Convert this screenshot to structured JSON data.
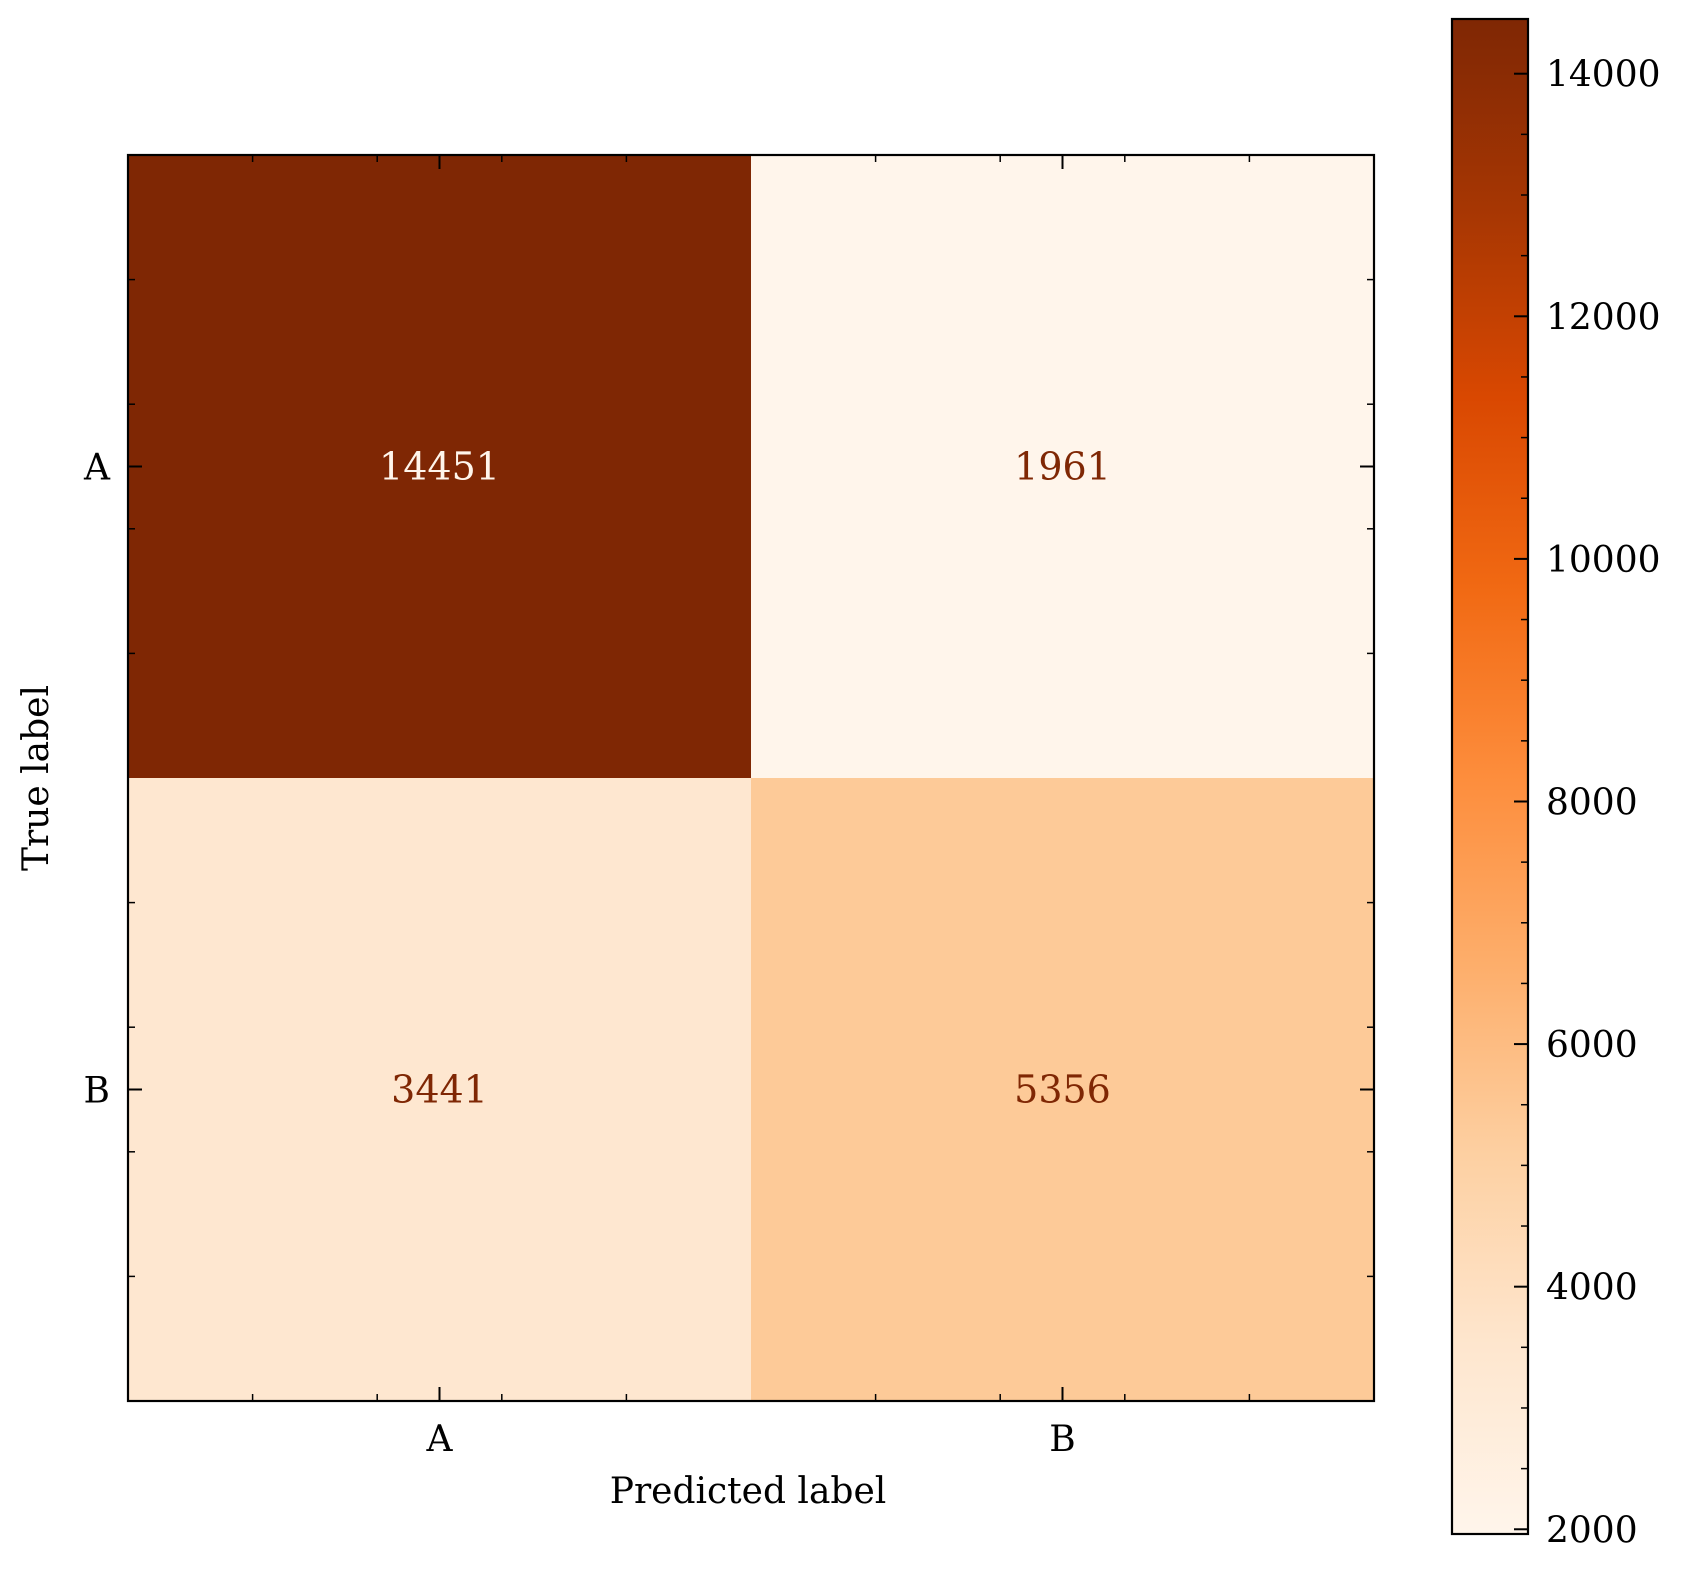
{
  "chart_data": {
    "type": "heatmap",
    "title": "",
    "xlabel": "Predicted label",
    "ylabel": "True label",
    "x_categories": [
      "A",
      "B"
    ],
    "y_categories": [
      "A",
      "B"
    ],
    "cells": [
      {
        "true": "A",
        "predicted": "A",
        "value": 14451
      },
      {
        "true": "A",
        "predicted": "B",
        "value": 1961
      },
      {
        "true": "B",
        "predicted": "A",
        "value": 3441
      },
      {
        "true": "B",
        "predicted": "B",
        "value": 5356
      }
    ],
    "colormap": "Oranges",
    "colorbar": {
      "min": 1961,
      "max": 14451,
      "ticks": [
        2000,
        4000,
        6000,
        8000,
        10000,
        12000,
        14000
      ],
      "tick_labels": [
        "2000",
        "4000",
        "6000",
        "8000",
        "10000",
        "12000",
        "14000"
      ]
    },
    "colors": {
      "low": "#fff5eb",
      "high": "#7f2704",
      "text_dark": "#7f2704",
      "text_light": "#fff5eb"
    }
  }
}
